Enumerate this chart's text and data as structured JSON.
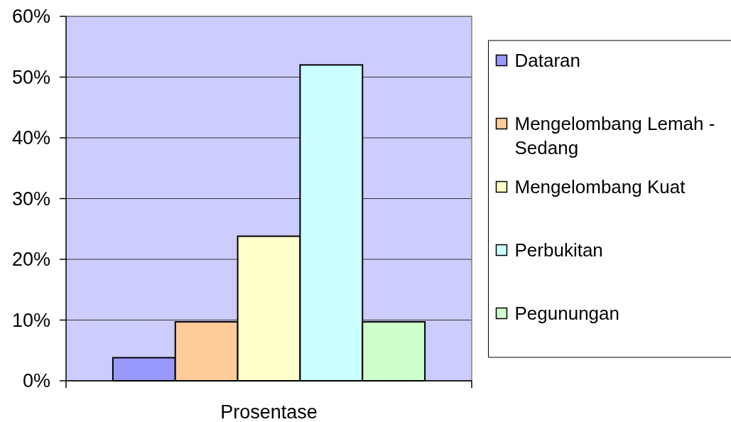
{
  "chart_data": {
    "type": "bar",
    "categories": [
      "Prosentase"
    ],
    "series": [
      {
        "name": "Dataran",
        "color": "#9999ff",
        "values": [
          3.8
        ]
      },
      {
        "name": "Mengelombang Lemah - Sedang",
        "color": "#ffcc99",
        "values": [
          9.7
        ]
      },
      {
        "name": "Mengelombang Kuat",
        "color": "#ffffcc",
        "values": [
          23.8
        ]
      },
      {
        "name": "Perbukitan",
        "color": "#ccffff",
        "values": [
          52
        ]
      },
      {
        "name": "Pegunungan",
        "color": "#ccffcc",
        "values": [
          9.7
        ]
      }
    ],
    "ylim": [
      0,
      60
    ],
    "yticks": [
      {
        "value": 0,
        "label": "0%"
      },
      {
        "value": 10,
        "label": "10%"
      },
      {
        "value": 20,
        "label": "20%"
      },
      {
        "value": 30,
        "label": "30%"
      },
      {
        "value": 40,
        "label": "40%"
      },
      {
        "value": 50,
        "label": "50%"
      },
      {
        "value": 60,
        "label": "60%"
      }
    ],
    "grid": "y",
    "legend": "right"
  }
}
